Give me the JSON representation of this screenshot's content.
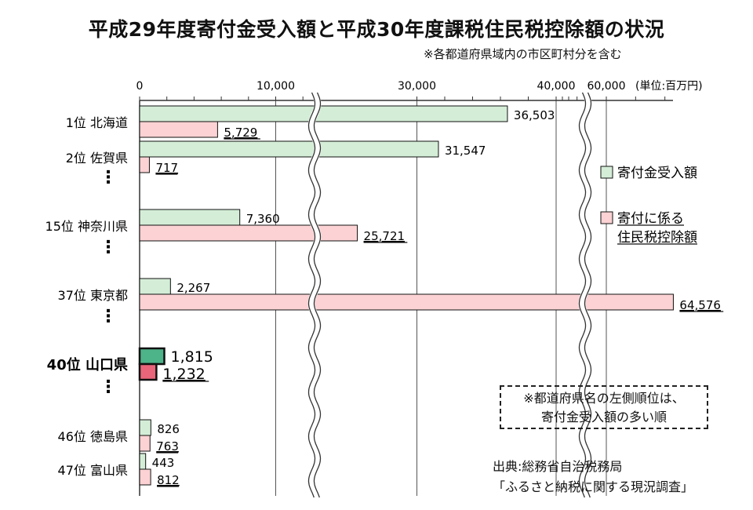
{
  "title": "平成29年度寄付金受入額と平成30年度課税住民税控除額の状況",
  "subtitle": "※各都道府県域内の市区町村分を含む",
  "unit_label": "(単位:百万円)",
  "note": {
    "line1": "※都道府県名の左側順位は、",
    "line2": "寄付金受入額の多い順"
  },
  "source": {
    "line1": "出典:総務省自治税務局",
    "line2": "「ふるさと納税に関する現況調査」"
  },
  "colors": {
    "donation": "#d4edd7",
    "deduction": "#fcd2d4",
    "donation_highlight": "#4db389",
    "deduction_highlight": "#e8657a"
  },
  "chart_data": {
    "type": "bar",
    "orientation": "horizontal",
    "axis_ticks": [
      "0",
      "10,000",
      "30,000",
      "40,000",
      "60,000"
    ],
    "axis_breaks": [
      "between 10,000 and 30,000",
      "between 40,000 and 60,000"
    ],
    "categories": [
      "1位 北海道",
      "2位 佐賀県",
      "15位 神奈川県",
      "37位 東京都",
      "40位 山口県",
      "46位 徳島県",
      "47位 富山県"
    ],
    "highlight_category": "40位 山口県",
    "series": [
      {
        "name": "寄付金受入額",
        "values": [
          36503,
          31547,
          7360,
          2267,
          1815,
          826,
          443
        ],
        "labels": [
          "36,503",
          "31,547",
          "7,360",
          "2,267",
          "1,815",
          "826",
          "443"
        ]
      },
      {
        "name": "寄付に係る住民税控除額",
        "values": [
          5729,
          717,
          25721,
          64576,
          1232,
          763,
          812
        ],
        "labels": [
          "5,729",
          "717",
          "25,721",
          "64,576",
          "1,232",
          "763",
          "812"
        ]
      }
    ],
    "ellipsis": "⋮"
  }
}
